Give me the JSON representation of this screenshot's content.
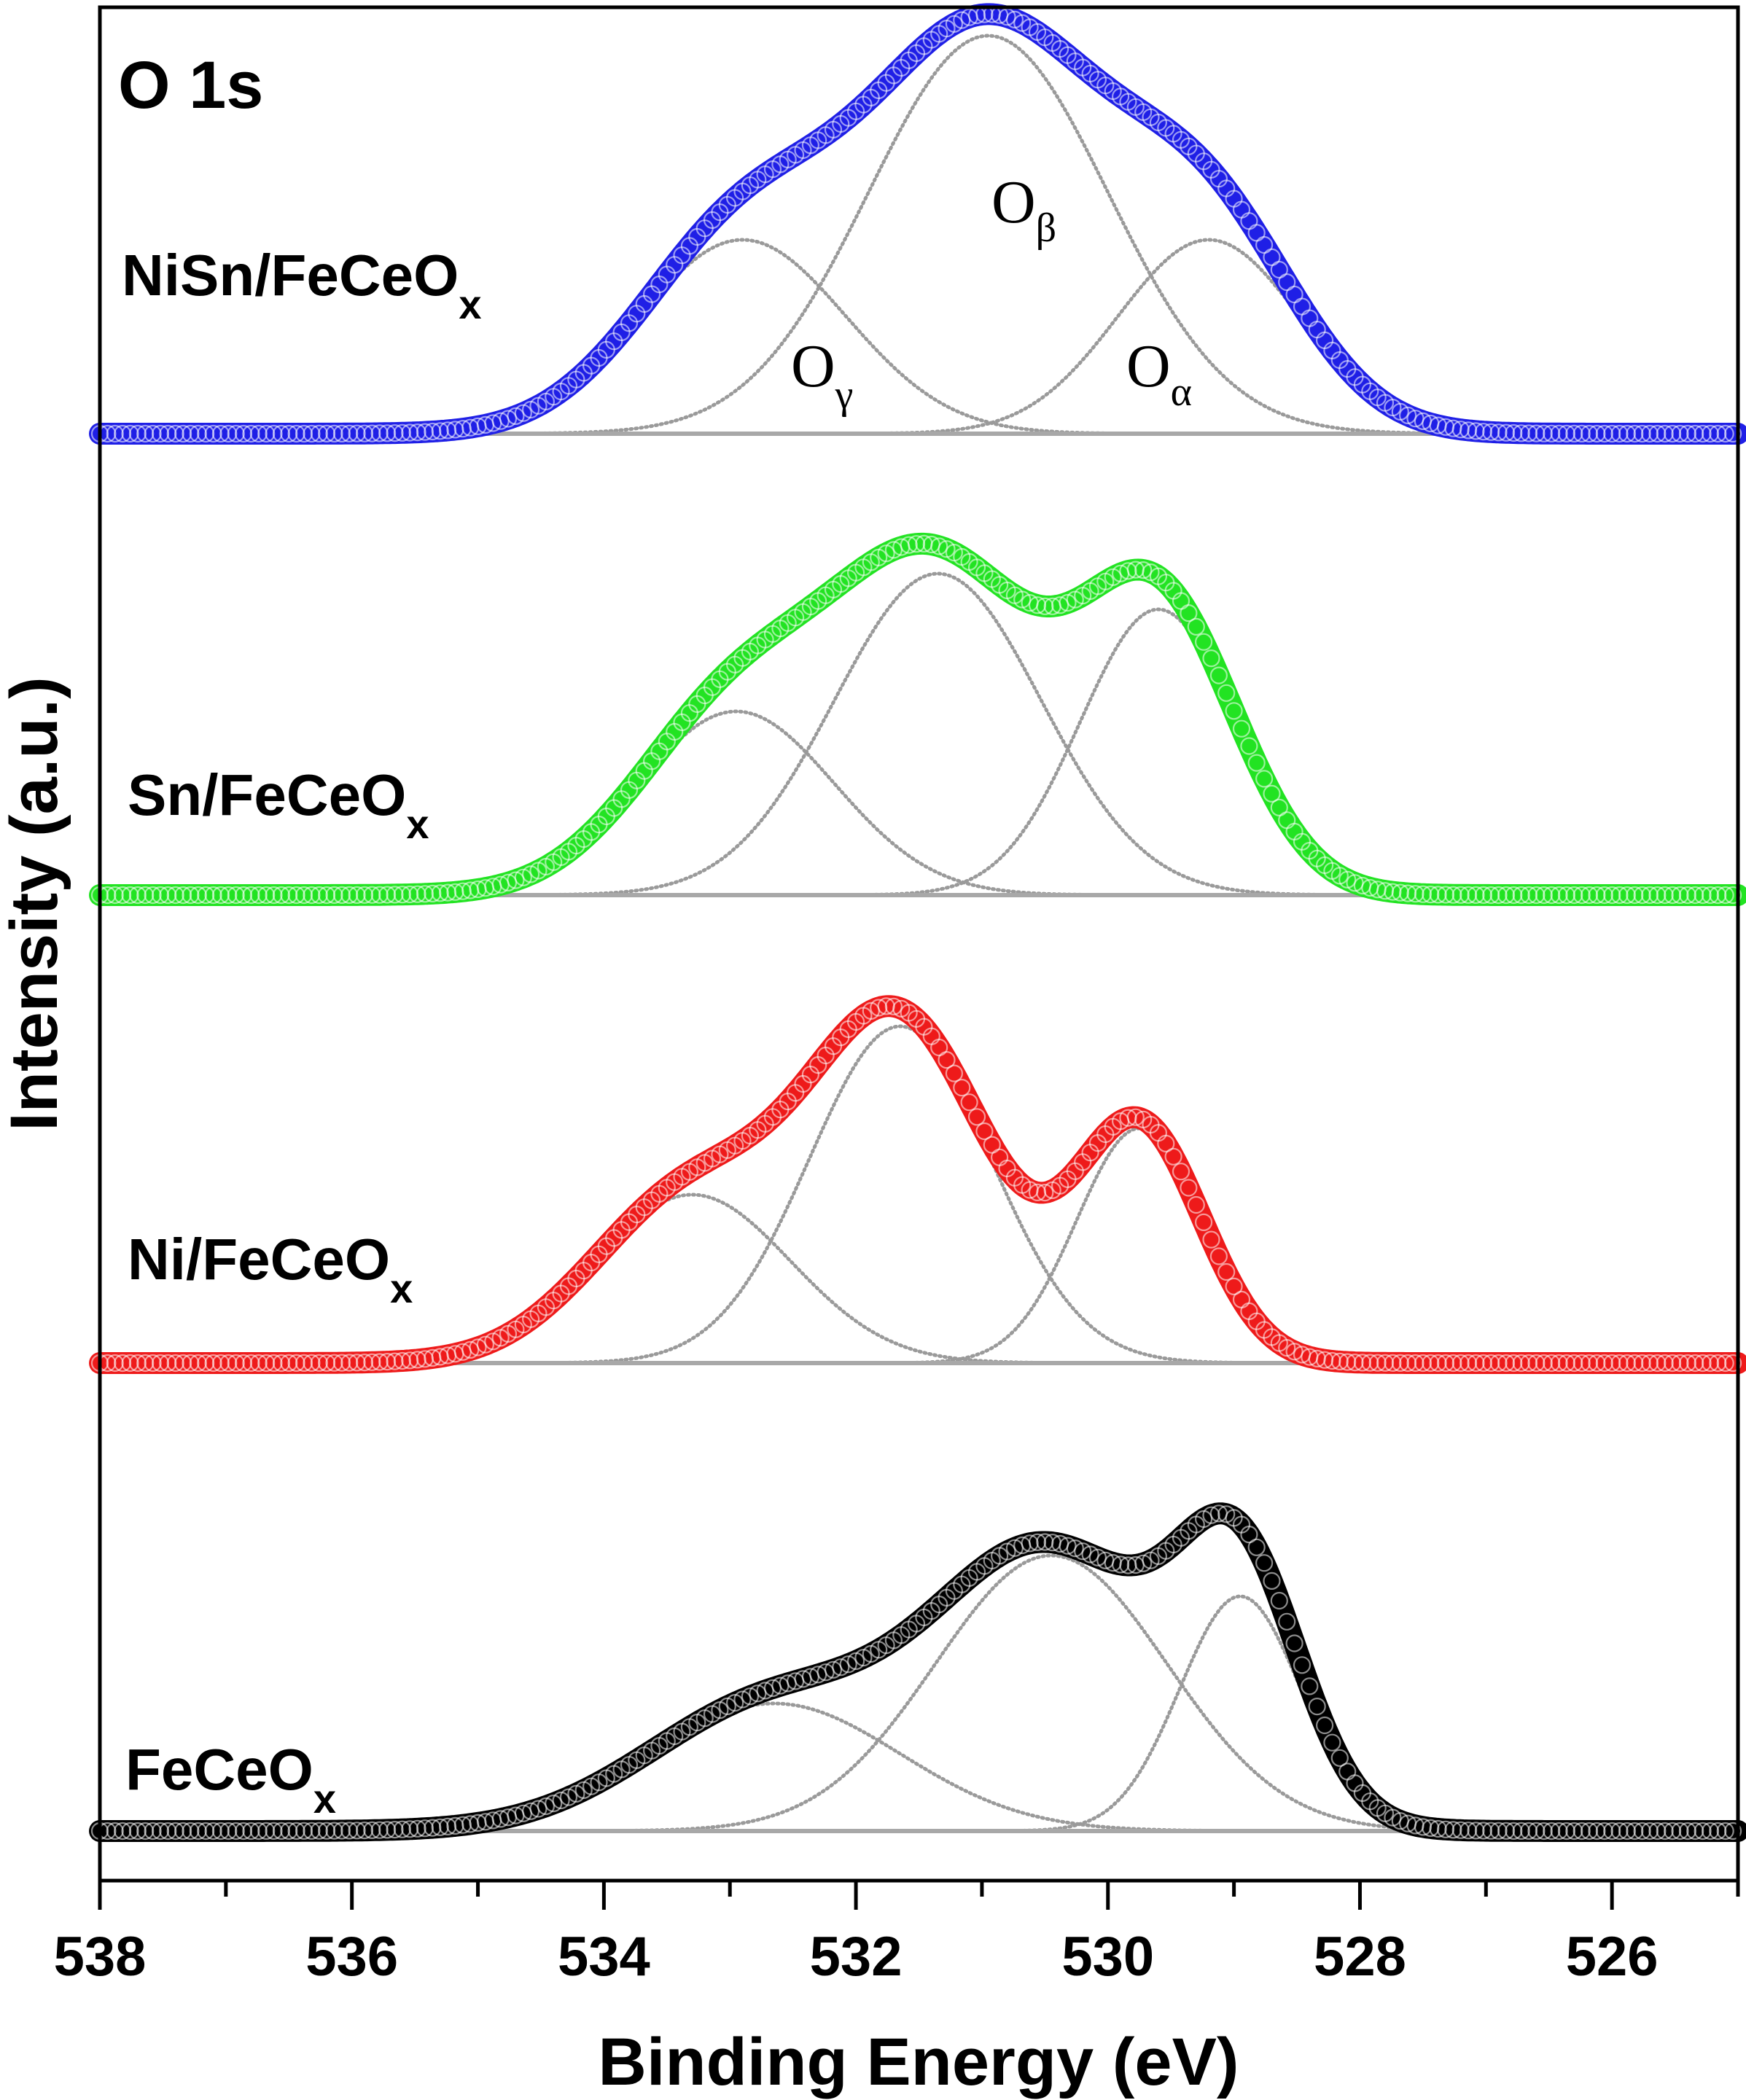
{
  "chart_data": {
    "type": "line",
    "title": "O 1s",
    "xlabel": "Binding Energy (eV)",
    "ylabel": "Intensity (a.u.)",
    "xlim": [
      538,
      525
    ],
    "xlim_note": "reversed axis (decreasing to the right)",
    "xticks_major": [
      538,
      536,
      534,
      532,
      530,
      528,
      526
    ],
    "xticks_minor": [
      537,
      535,
      533,
      531,
      529,
      527,
      525
    ],
    "component_labels": {
      "alpha": {
        "base": "O",
        "sub": "α"
      },
      "beta": {
        "base": "O",
        "sub": "β"
      },
      "gamma": {
        "base": "O",
        "sub": "γ"
      }
    },
    "series": [
      {
        "name_base": "NiSn/FeCeO",
        "name_sub": "x",
        "color": "#1f1fe6",
        "components": [
          {
            "label": "O_alpha",
            "center": 529.2,
            "height": 0.38,
            "sigma": 0.72
          },
          {
            "label": "O_beta",
            "center": 530.95,
            "height": 0.78,
            "sigma": 0.95
          },
          {
            "label": "O_gamma",
            "center": 532.9,
            "height": 0.38,
            "sigma": 0.82
          }
        ]
      },
      {
        "name_base": "Sn/FeCeO",
        "name_sub": "x",
        "color": "#22e322",
        "components": [
          {
            "label": "O_alpha",
            "center": 529.6,
            "height": 0.56,
            "sigma": 0.62
          },
          {
            "label": "O_beta",
            "center": 531.35,
            "height": 0.63,
            "sigma": 0.82
          },
          {
            "label": "O_gamma",
            "center": 532.95,
            "height": 0.36,
            "sigma": 0.78
          }
        ]
      },
      {
        "name_base": "Ni/FeCeO",
        "name_sub": "x",
        "color": "#ee1a1a",
        "components": [
          {
            "label": "O_alpha",
            "center": 529.75,
            "height": 0.46,
            "sigma": 0.5
          },
          {
            "label": "O_beta",
            "center": 531.65,
            "height": 0.66,
            "sigma": 0.72
          },
          {
            "label": "O_gamma",
            "center": 533.3,
            "height": 0.33,
            "sigma": 0.78
          }
        ]
      },
      {
        "name_base": "FeCeO",
        "name_sub": "x",
        "color": "#000000",
        "components": [
          {
            "label": "O_alpha",
            "center": 528.95,
            "height": 0.46,
            "sigma": 0.48
          },
          {
            "label": "O_beta",
            "center": 530.45,
            "height": 0.54,
            "sigma": 0.92
          },
          {
            "label": "O_gamma",
            "center": 532.65,
            "height": 0.25,
            "sigma": 1.0
          }
        ]
      }
    ]
  }
}
